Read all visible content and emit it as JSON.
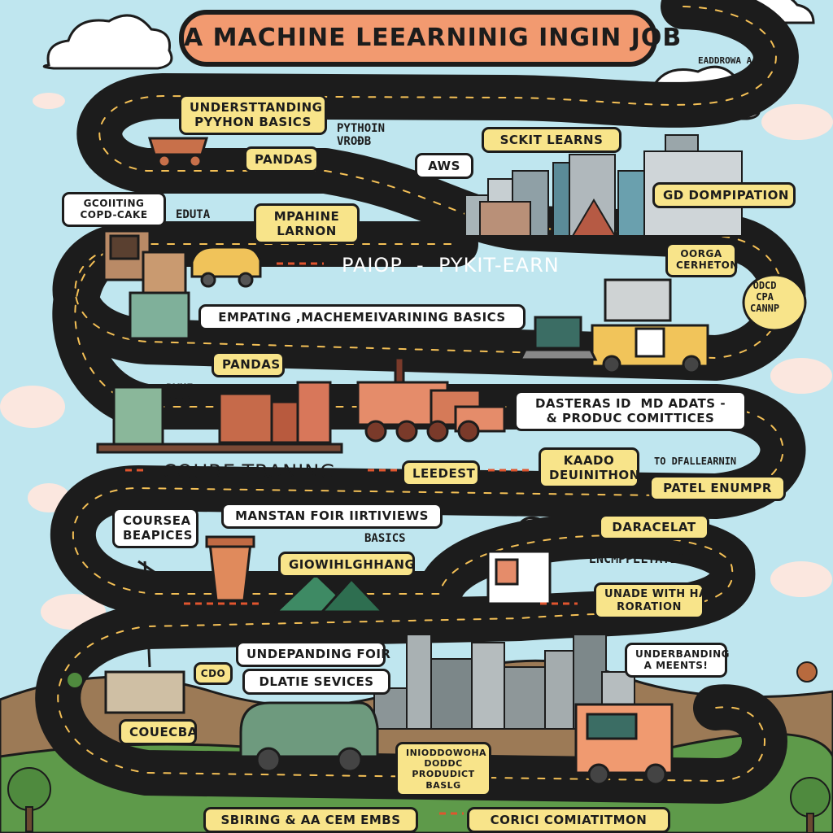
{
  "title": "A MACHINE LEEARNINIG INGIN JOB",
  "colors": {
    "sky": "#bfe6ef",
    "road": "#1c1c1c",
    "label_fill": "#f8e48a",
    "title_fill": "#f29a70",
    "hill": "#8c6a48",
    "grass": "#5e9a4a"
  },
  "labels": {
    "understanding_python": "UNDERSTTANDING\nPYYHON BASICS",
    "python_vrods": "PYTHOIN\nVROÐB",
    "pandas_top": "PANDAS",
    "aws": "AWS",
    "scikit_learns": "SCKIT LEARNS",
    "gd_dompipation": "GD DOMPIPATION",
    "gcoditing": "GCOIITING\nCOPD-CAKE",
    "edutaa": "EDUTA",
    "mpahine_larnon": "MPAHINE\nLARNON",
    "paiop_pykit": "PAIOP  -  PYKIT-EARN",
    "oorga_cerheton": "OORGA\nCERHETON",
    "odcd_cpa": "ODCD\nCPA\nCANNP",
    "empating": "EMPATING ,MACHEMEIVARINING BASICS",
    "pandas_mid": "PANDAS",
    "pyml": "PYMI\n(ᵔ6)",
    "dasteras": "DASTERAS ID  MD ADATS -\n& PRODUC COMITTICES",
    "coure_traning": "COURE-TRANING",
    "leedest": "LEEDEST",
    "kaado": "KAADO\nDEUINITHON",
    "to_dfallearnin": "TO DFALLEARNIN",
    "patel_enumpr": "PATEL ENUMPR",
    "coursea_bpices": "COURSEA\nBEAPICES",
    "manstan": "MANSTAN FOIR IIRTIVIEWS",
    "basics": "BASICS",
    "giowihlghhang": "GIOWIHLGHHANG",
    "daracelat": "DARACELAT",
    "encmppeltation": "ENCMPPELTATION",
    "unade_roration": "UNADE WITH HA\nRORATION",
    "undepanding": "UNDEPANDING FOIR",
    "dlatie_services": "DLATIE SEVICES",
    "underbanding": "UNDERBANDING\nA MEENTS!",
    "couecba": "COUECBA",
    "introducing": "INIODDOWOHA\nDODDC\nPRODUDICT\nBASLG",
    "sbiring": "SBIRING & AA CEM EMBS",
    "corici": "CORICI COMIATITMON",
    "corner": "EADDROWA A A",
    "cup": "CDO"
  }
}
